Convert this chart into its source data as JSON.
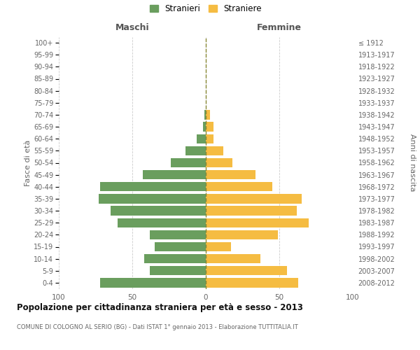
{
  "age_groups": [
    "0-4",
    "5-9",
    "10-14",
    "15-19",
    "20-24",
    "25-29",
    "30-34",
    "35-39",
    "40-44",
    "45-49",
    "50-54",
    "55-59",
    "60-64",
    "65-69",
    "70-74",
    "75-79",
    "80-84",
    "85-89",
    "90-94",
    "95-99",
    "100+"
  ],
  "birth_years": [
    "2008-2012",
    "2003-2007",
    "1998-2002",
    "1993-1997",
    "1988-1992",
    "1983-1987",
    "1978-1982",
    "1973-1977",
    "1968-1972",
    "1963-1967",
    "1958-1962",
    "1953-1957",
    "1948-1952",
    "1943-1947",
    "1938-1942",
    "1933-1937",
    "1928-1932",
    "1923-1927",
    "1918-1922",
    "1913-1917",
    "≤ 1912"
  ],
  "maschi": [
    72,
    38,
    42,
    35,
    38,
    60,
    65,
    73,
    72,
    43,
    24,
    14,
    6,
    2,
    1,
    0,
    0,
    0,
    0,
    0,
    0
  ],
  "femmine": [
    63,
    55,
    37,
    17,
    49,
    70,
    62,
    65,
    45,
    34,
    18,
    12,
    5,
    5,
    3,
    0,
    0,
    0,
    0,
    0,
    0
  ],
  "maschi_color": "#6a9e5e",
  "femmine_color": "#f5bc42",
  "background_color": "#ffffff",
  "grid_color": "#cccccc",
  "title": "Popolazione per cittadinanza straniera per età e sesso - 2013",
  "subtitle": "COMUNE DI COLOGNO AL SERIO (BG) - Dati ISTAT 1° gennaio 2013 - Elaborazione TUTTITALIA.IT",
  "xlabel_left": "Maschi",
  "xlabel_right": "Femmine",
  "ylabel_left": "Fasce di età",
  "ylabel_right": "Anni di nascita",
  "legend_maschi": "Stranieri",
  "legend_femmine": "Straniere",
  "xlim": 100,
  "bar_height": 0.78
}
